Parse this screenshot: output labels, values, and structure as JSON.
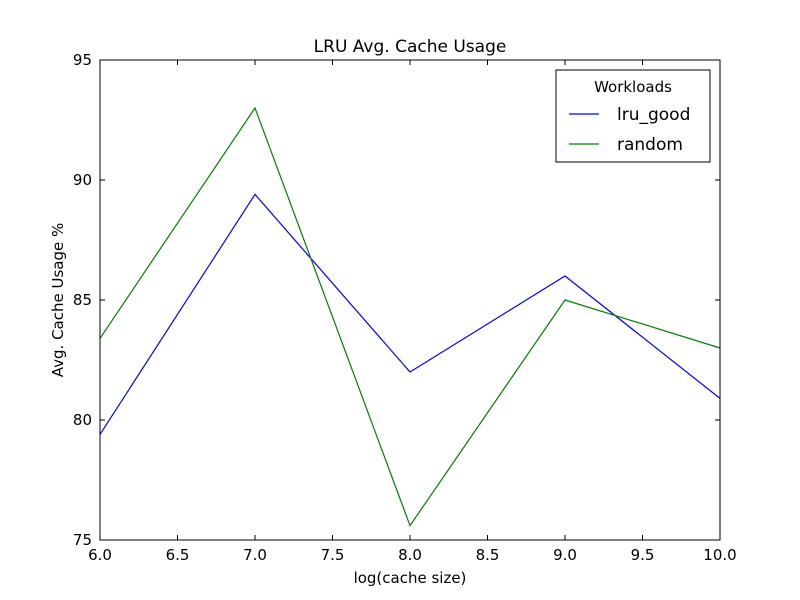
{
  "chart_data": {
    "type": "line",
    "title": "LRU Avg. Cache Usage",
    "xlabel": "log(cache size)",
    "ylabel": "Avg. Cache Usage %",
    "xlim": [
      6.0,
      10.0
    ],
    "ylim": [
      75,
      95
    ],
    "xticks": [
      "6.0",
      "6.5",
      "7.0",
      "7.5",
      "8.0",
      "8.5",
      "9.0",
      "9.5",
      "10.0"
    ],
    "yticks": [
      "75",
      "80",
      "85",
      "90",
      "95"
    ],
    "grid": false,
    "legend": {
      "title": "Workloads",
      "position": "top-right"
    },
    "x": [
      6.0,
      7.0,
      8.0,
      9.0,
      10.0
    ],
    "series": [
      {
        "name": "lru_good",
        "color": "#0000ff",
        "values": [
          79.4,
          89.4,
          82.0,
          86.0,
          80.9
        ]
      },
      {
        "name": "random",
        "color": "#008000",
        "values": [
          83.4,
          93.0,
          75.6,
          85.0,
          83.0
        ]
      }
    ]
  }
}
